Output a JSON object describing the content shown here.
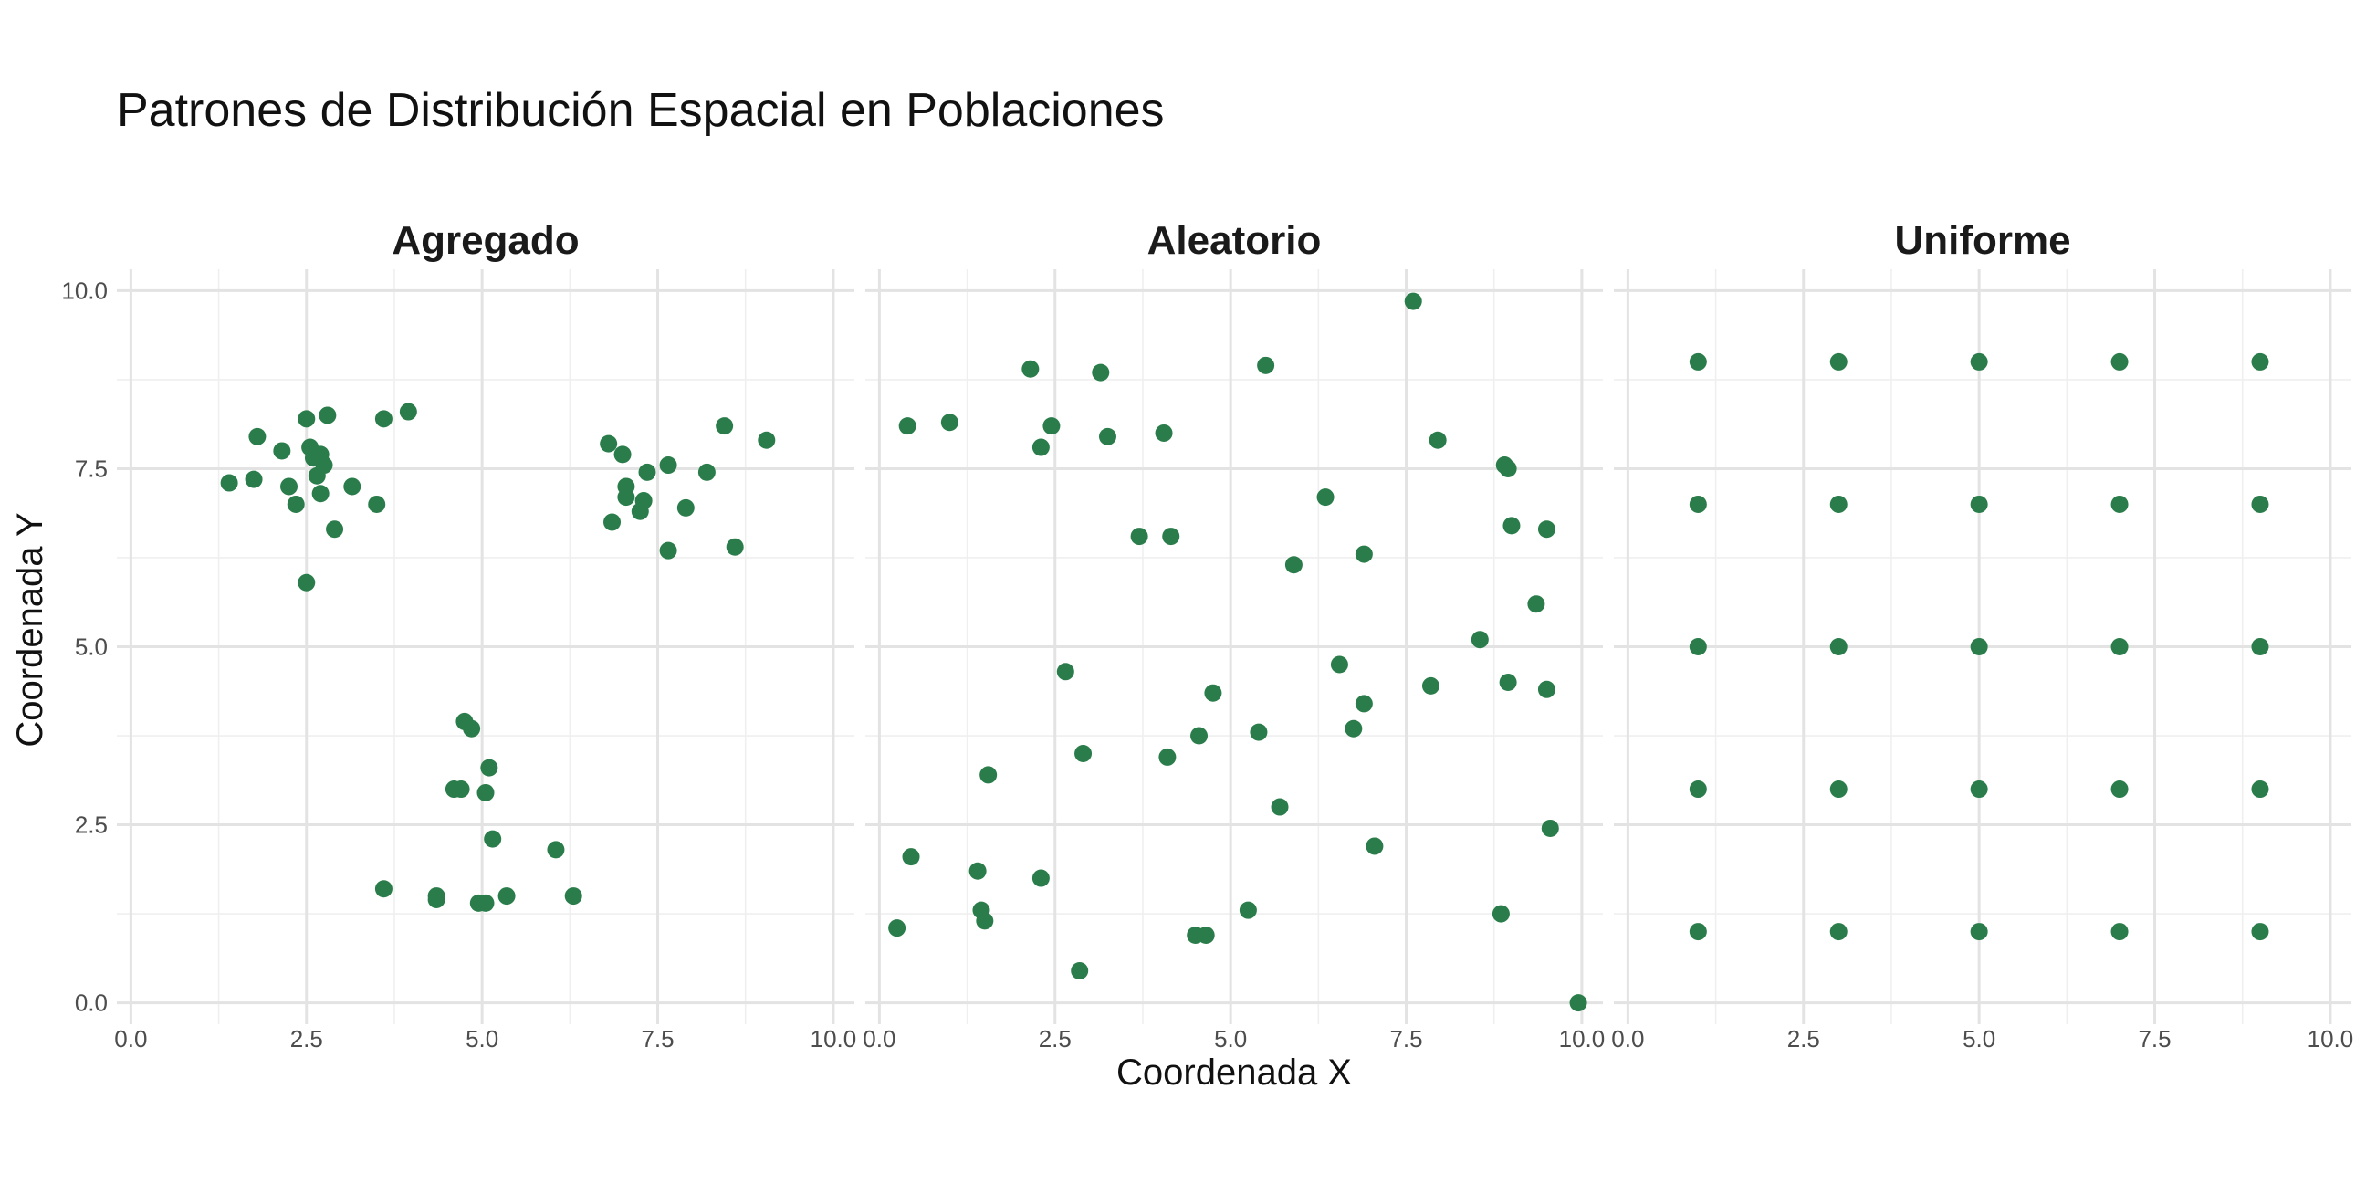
{
  "chart_data": {
    "type": "scatter",
    "title": "Patrones de Distribución Espacial en Poblaciones",
    "xlabel": "Coordenada X",
    "ylabel": "Coordenada Y",
    "xlim": [
      -0.2,
      10.3
    ],
    "ylim": [
      -0.3,
      10.3
    ],
    "x_ticks": [
      0,
      2.5,
      5,
      7.5,
      10
    ],
    "x_tick_labels": [
      "0.0",
      "2.5",
      "5.0",
      "7.5",
      "10.0"
    ],
    "y_ticks": [
      0,
      2.5,
      5,
      7.5,
      10
    ],
    "y_tick_labels": [
      "0.0",
      "2.5",
      "5.0",
      "7.5",
      "10.0"
    ],
    "grid": true,
    "point_color": "#2a7d4a",
    "panels": [
      {
        "name": "Agregado",
        "points": [
          [
            1.4,
            7.3
          ],
          [
            1.75,
            7.35
          ],
          [
            1.8,
            7.95
          ],
          [
            2.15,
            7.75
          ],
          [
            2.25,
            7.25
          ],
          [
            2.35,
            7.0
          ],
          [
            2.5,
            8.2
          ],
          [
            2.55,
            7.8
          ],
          [
            2.6,
            7.65
          ],
          [
            2.65,
            7.4
          ],
          [
            2.7,
            7.15
          ],
          [
            2.7,
            7.7
          ],
          [
            2.75,
            7.55
          ],
          [
            2.8,
            8.25
          ],
          [
            2.9,
            6.65
          ],
          [
            2.5,
            5.9
          ],
          [
            3.15,
            7.25
          ],
          [
            3.5,
            7.0
          ],
          [
            3.6,
            8.2
          ],
          [
            3.95,
            8.3
          ],
          [
            6.8,
            7.85
          ],
          [
            6.85,
            6.75
          ],
          [
            7.0,
            7.7
          ],
          [
            7.05,
            7.25
          ],
          [
            7.05,
            7.1
          ],
          [
            7.25,
            6.9
          ],
          [
            7.3,
            7.05
          ],
          [
            7.35,
            7.45
          ],
          [
            7.65,
            7.55
          ],
          [
            7.65,
            6.35
          ],
          [
            7.9,
            6.95
          ],
          [
            8.2,
            7.45
          ],
          [
            8.45,
            8.1
          ],
          [
            8.6,
            6.4
          ],
          [
            9.05,
            7.9
          ],
          [
            3.6,
            1.6
          ],
          [
            4.35,
            1.5
          ],
          [
            4.35,
            1.45
          ],
          [
            4.6,
            3.0
          ],
          [
            4.7,
            3.0
          ],
          [
            4.75,
            3.95
          ],
          [
            4.85,
            3.85
          ],
          [
            4.95,
            1.4
          ],
          [
            5.05,
            2.95
          ],
          [
            5.05,
            1.4
          ],
          [
            5.1,
            3.3
          ],
          [
            5.15,
            2.3
          ],
          [
            5.35,
            1.5
          ],
          [
            6.05,
            2.15
          ],
          [
            6.3,
            1.5
          ]
        ]
      },
      {
        "name": "Aleatorio",
        "points": [
          [
            0.25,
            1.05
          ],
          [
            0.4,
            8.1
          ],
          [
            0.45,
            2.05
          ],
          [
            1.0,
            8.15
          ],
          [
            1.4,
            1.85
          ],
          [
            1.45,
            1.3
          ],
          [
            1.5,
            1.15
          ],
          [
            1.55,
            3.2
          ],
          [
            2.15,
            8.9
          ],
          [
            2.3,
            1.75
          ],
          [
            2.3,
            7.8
          ],
          [
            2.45,
            8.1
          ],
          [
            2.65,
            4.65
          ],
          [
            2.85,
            0.45
          ],
          [
            2.9,
            3.5
          ],
          [
            3.15,
            8.85
          ],
          [
            3.25,
            7.95
          ],
          [
            3.7,
            6.55
          ],
          [
            4.05,
            8.0
          ],
          [
            4.1,
            3.45
          ],
          [
            4.15,
            6.55
          ],
          [
            4.5,
            0.95
          ],
          [
            4.55,
            3.75
          ],
          [
            4.65,
            0.95
          ],
          [
            4.75,
            4.35
          ],
          [
            5.25,
            1.3
          ],
          [
            5.4,
            3.8
          ],
          [
            5.5,
            8.95
          ],
          [
            5.7,
            2.75
          ],
          [
            5.9,
            6.15
          ],
          [
            6.35,
            7.1
          ],
          [
            6.55,
            4.75
          ],
          [
            6.75,
            3.85
          ],
          [
            6.9,
            4.2
          ],
          [
            6.9,
            6.3
          ],
          [
            7.05,
            2.2
          ],
          [
            7.6,
            9.85
          ],
          [
            7.85,
            4.45
          ],
          [
            7.95,
            7.9
          ],
          [
            8.55,
            5.1
          ],
          [
            8.85,
            1.25
          ],
          [
            8.9,
            7.55
          ],
          [
            8.95,
            7.5
          ],
          [
            8.95,
            4.5
          ],
          [
            9.0,
            6.7
          ],
          [
            9.35,
            5.6
          ],
          [
            9.5,
            4.4
          ],
          [
            9.5,
            6.65
          ],
          [
            9.55,
            2.45
          ],
          [
            9.95,
            0.0
          ]
        ]
      },
      {
        "name": "Uniforme",
        "points": [
          [
            1,
            1
          ],
          [
            1,
            3
          ],
          [
            1,
            5
          ],
          [
            1,
            7
          ],
          [
            1,
            9
          ],
          [
            3,
            1
          ],
          [
            3,
            3
          ],
          [
            3,
            5
          ],
          [
            3,
            7
          ],
          [
            3,
            9
          ],
          [
            5,
            1
          ],
          [
            5,
            3
          ],
          [
            5,
            5
          ],
          [
            5,
            7
          ],
          [
            5,
            9
          ],
          [
            7,
            1
          ],
          [
            7,
            3
          ],
          [
            7,
            5
          ],
          [
            7,
            7
          ],
          [
            7,
            9
          ],
          [
            9,
            1
          ],
          [
            9,
            3
          ],
          [
            9,
            5
          ],
          [
            9,
            7
          ],
          [
            9,
            9
          ]
        ]
      }
    ]
  }
}
